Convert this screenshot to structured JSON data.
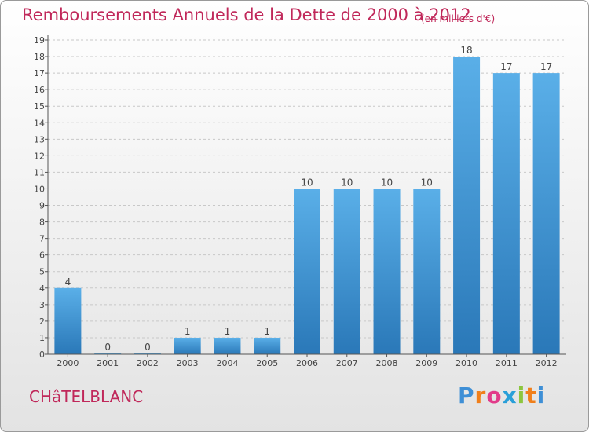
{
  "header": {
    "title": "Remboursements Annuels de la Dette de 2000 à 2012",
    "subtitle": "(en milliers d'€)"
  },
  "footer": {
    "commune": "CHâTELBLANC",
    "logo": "Proxiti"
  },
  "colors": {
    "bar_top": "#5aafe8",
    "bar_bottom": "#2a78b8",
    "title": "#c0285a",
    "grid": "#c8c8c8"
  },
  "chart_data": {
    "type": "bar",
    "title": "Remboursements Annuels de la Dette de 2000 à 2012",
    "subtitle": "(en milliers d'€)",
    "categories": [
      "2000",
      "2001",
      "2002",
      "2003",
      "2004",
      "2005",
      "2006",
      "2007",
      "2008",
      "2009",
      "2010",
      "2011",
      "2012"
    ],
    "values": [
      4,
      0,
      0,
      1,
      1,
      1,
      10,
      10,
      10,
      10,
      18,
      17,
      17
    ],
    "ylim": [
      0,
      19
    ],
    "yticks": [
      0,
      1,
      2,
      3,
      4,
      5,
      6,
      7,
      8,
      9,
      10,
      11,
      12,
      13,
      14,
      15,
      16,
      17,
      18,
      19
    ],
    "grid": "horizontal dashed",
    "xlabel": "",
    "ylabel": ""
  }
}
